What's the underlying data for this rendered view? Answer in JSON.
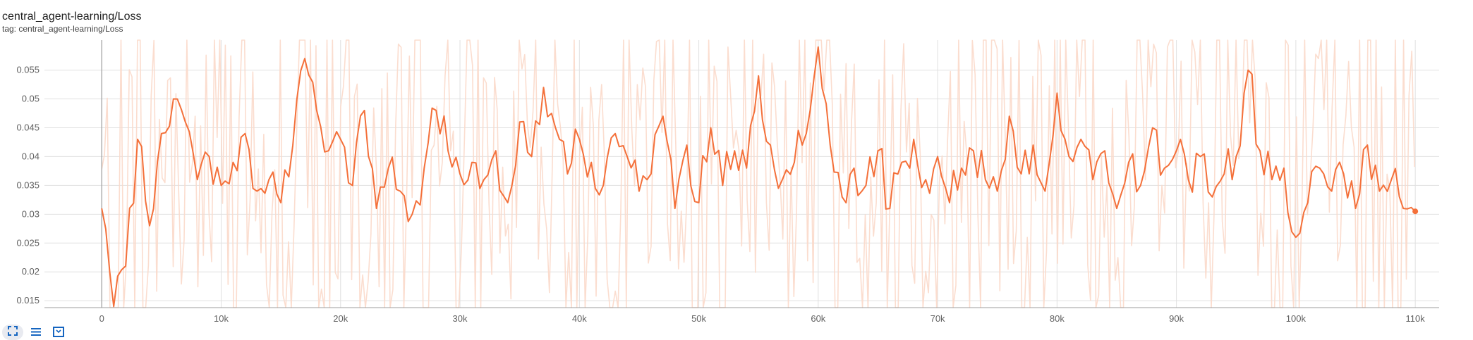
{
  "card": {
    "title": "central_agent-learning/Loss",
    "subtitle": "tag: central_agent-learning/Loss"
  },
  "colors": {
    "smoothed": "#f4703a",
    "raw": "#fbd9ca",
    "grid": "#e0e0e0",
    "axis": "#9e9e9e",
    "text": "#616161",
    "icon": "#1565c0"
  },
  "toolbar": {
    "buttons": [
      {
        "name": "fit-domain-icon"
      },
      {
        "name": "toggle-log-icon"
      },
      {
        "name": "expand-icon"
      }
    ]
  },
  "chart_data": {
    "type": "line",
    "title": "",
    "xlabel": "",
    "ylabel": "",
    "xlim": [
      -4800,
      112000
    ],
    "ylim": [
      0.0138,
      0.0602
    ],
    "grid": true,
    "x_ticks": [
      {
        "value": 0,
        "label": "0"
      },
      {
        "value": 10000,
        "label": "10k"
      },
      {
        "value": 20000,
        "label": "20k"
      },
      {
        "value": 30000,
        "label": "30k"
      },
      {
        "value": 40000,
        "label": "40k"
      },
      {
        "value": 50000,
        "label": "50k"
      },
      {
        "value": 60000,
        "label": "60k"
      },
      {
        "value": 70000,
        "label": "70k"
      },
      {
        "value": 80000,
        "label": "80k"
      },
      {
        "value": 90000,
        "label": "90k"
      },
      {
        "value": 100000,
        "label": "100k"
      },
      {
        "value": 110000,
        "label": "110k"
      }
    ],
    "y_ticks": [
      {
        "value": 0.015,
        "label": "0.015"
      },
      {
        "value": 0.02,
        "label": "0.02"
      },
      {
        "value": 0.025,
        "label": "0.025"
      },
      {
        "value": 0.03,
        "label": "0.03"
      },
      {
        "value": 0.035,
        "label": "0.035"
      },
      {
        "value": 0.04,
        "label": "0.04"
      },
      {
        "value": 0.045,
        "label": "0.045"
      },
      {
        "value": 0.05,
        "label": "0.05"
      },
      {
        "value": 0.055,
        "label": "0.055"
      }
    ],
    "series": [
      {
        "role": "smoothed",
        "x": [
          0,
          1000,
          2000,
          3000,
          4000,
          5000,
          6000,
          7000,
          8000,
          9000,
          10000,
          11000,
          12000,
          13000,
          14000,
          15000,
          16000,
          17000,
          18000,
          19000,
          20000,
          21000,
          22000,
          23000,
          24000,
          25000,
          26000,
          27000,
          28000,
          29000,
          30000,
          31000,
          32000,
          33000,
          34000,
          35000,
          36000,
          37000,
          38000,
          39000,
          40000,
          41000,
          42000,
          43000,
          44000,
          45000,
          46000,
          47000,
          48000,
          49000,
          50000,
          51000,
          52000,
          53000,
          54000,
          55000,
          56000,
          57000,
          58000,
          59000,
          60000,
          61000,
          62000,
          63000,
          64000,
          65000,
          66000,
          67000,
          68000,
          69000,
          70000,
          71000,
          72000,
          73000,
          74000,
          75000,
          76000,
          77000,
          78000,
          79000,
          80000,
          81000,
          82000,
          83000,
          84000,
          85000,
          86000,
          87000,
          88000,
          89000,
          90000,
          91000,
          92000,
          93000,
          94000,
          95000,
          96000,
          97000,
          98000,
          99000,
          100000,
          101000,
          102000,
          103000,
          104000,
          105000,
          106000,
          107000,
          108000,
          109000,
          110000
        ],
        "values": [
          0.031,
          0.014,
          0.021,
          0.043,
          0.028,
          0.044,
          0.05,
          0.046,
          0.036,
          0.04,
          0.035,
          0.039,
          0.044,
          0.034,
          0.036,
          0.032,
          0.042,
          0.057,
          0.048,
          0.041,
          0.043,
          0.035,
          0.048,
          0.031,
          0.038,
          0.034,
          0.03,
          0.038,
          0.048,
          0.041,
          0.037,
          0.039,
          0.036,
          0.041,
          0.032,
          0.046,
          0.04,
          0.052,
          0.045,
          0.037,
          0.043,
          0.039,
          0.035,
          0.044,
          0.04,
          0.034,
          0.037,
          0.047,
          0.031,
          0.042,
          0.032,
          0.045,
          0.035,
          0.041,
          0.038,
          0.054,
          0.042,
          0.036,
          0.039,
          0.044,
          0.059,
          0.042,
          0.033,
          0.038,
          0.035,
          0.041,
          0.031,
          0.039,
          0.043,
          0.036,
          0.04,
          0.032,
          0.038,
          0.041,
          0.036,
          0.034,
          0.047,
          0.037,
          0.042,
          0.034,
          0.051,
          0.04,
          0.043,
          0.036,
          0.041,
          0.031,
          0.039,
          0.035,
          0.045,
          0.038,
          0.041,
          0.036,
          0.04,
          0.033,
          0.037,
          0.04,
          0.055,
          0.041,
          0.036,
          0.038,
          0.026,
          0.032,
          0.038,
          0.034,
          0.037,
          0.031,
          0.042,
          0.034,
          0.036,
          0.031,
          0.0305
        ]
      }
    ]
  }
}
